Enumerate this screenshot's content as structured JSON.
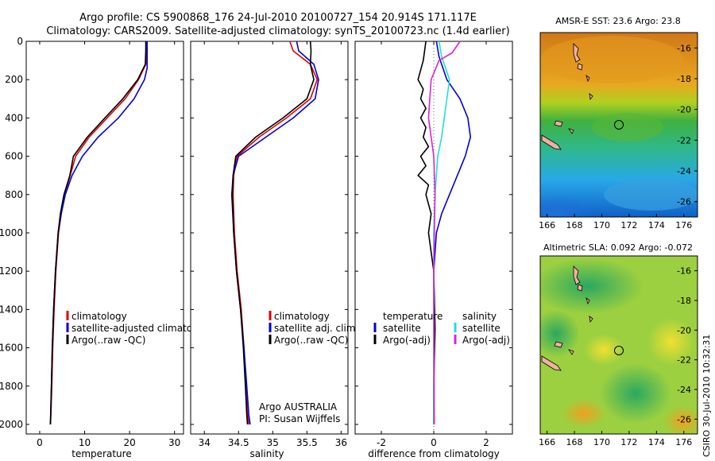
{
  "header": {
    "line1": "Argo profile: CS 5900868_176 24-Jul-2010 20100727_154 20.914S 171.117E",
    "line2": "Climatology: CARS2009. Satellite-adjusted climatology: synTS_20100723.nc (1.4d earlier)"
  },
  "credit": "CSIRO 30-Jul-2010 10:32:31",
  "colors": {
    "red": "#e00000",
    "blue": "#0000dd",
    "black": "#000000",
    "cyan": "#22dddd",
    "magenta": "#dd22dd"
  },
  "chart_data": [
    {
      "type": "line",
      "title": "",
      "xlabel": "temperature",
      "ylabel": "",
      "xlim": [
        -3,
        32
      ],
      "ylim": [
        2050,
        0
      ],
      "xticks": [
        0,
        10,
        20,
        30
      ],
      "yticks": [
        0,
        200,
        400,
        600,
        800,
        1000,
        1200,
        1400,
        1600,
        1800,
        2000
      ],
      "legend": [
        "climatology",
        "satellite-adjusted climatology",
        "Argo(..raw -QC)"
      ],
      "series": [
        {
          "name": "climatology",
          "color": "red",
          "x": [
            23.8,
            23.7,
            23.6,
            22.0,
            19.0,
            15.0,
            11.0,
            8.0,
            6.8,
            5.5,
            4.8,
            4.2,
            3.6,
            3.2,
            2.9,
            2.7,
            2.5,
            2.4
          ],
          "y": [
            0,
            50,
            120,
            200,
            300,
            400,
            500,
            600,
            700,
            800,
            900,
            1000,
            1200,
            1400,
            1600,
            1800,
            1950,
            2000
          ]
        },
        {
          "name": "satellite-adjusted climatology",
          "color": "blue",
          "x": [
            23.9,
            23.9,
            23.9,
            23.3,
            21.0,
            17.5,
            13.0,
            9.5,
            7.2,
            5.7,
            4.8,
            4.1,
            3.5,
            3.1,
            2.8,
            2.6,
            2.45,
            2.4
          ],
          "y": [
            0,
            50,
            140,
            200,
            300,
            400,
            500,
            600,
            700,
            800,
            900,
            1000,
            1200,
            1400,
            1600,
            1800,
            1950,
            2000
          ]
        },
        {
          "name": "Argo(..raw -QC)",
          "color": "black",
          "x": [
            23.6,
            23.6,
            23.5,
            21.8,
            18.5,
            14.5,
            10.6,
            7.5,
            6.7,
            5.4,
            4.6,
            4.1,
            3.5,
            3.1,
            2.8,
            2.6,
            2.45,
            2.35
          ],
          "y": [
            0,
            50,
            120,
            200,
            300,
            400,
            500,
            600,
            700,
            800,
            900,
            1000,
            1200,
            1400,
            1600,
            1800,
            1950,
            2000
          ]
        }
      ]
    },
    {
      "type": "line",
      "title": "",
      "xlabel": "salinity",
      "ylabel": "",
      "xlim": [
        33.8,
        36.1
      ],
      "ylim": [
        2050,
        0
      ],
      "xticks": [
        34,
        34.5,
        35,
        35.5,
        36
      ],
      "legend": [
        "climatology",
        "satellite adj. clim.",
        "Argo(..raw -QC)"
      ],
      "annotation": [
        "Argo AUSTRALIA",
        "PI: Susan Wijffels"
      ],
      "series": [
        {
          "name": "climatology",
          "color": "red",
          "x": [
            35.25,
            35.3,
            35.55,
            35.65,
            35.55,
            35.2,
            34.8,
            34.48,
            34.43,
            34.42,
            34.44,
            34.48,
            34.54,
            34.58,
            34.61,
            34.63,
            34.65
          ],
          "y": [
            0,
            50,
            120,
            200,
            300,
            400,
            500,
            600,
            700,
            800,
            1000,
            1200,
            1400,
            1600,
            1800,
            1950,
            2000
          ]
        },
        {
          "name": "satellite adj. clim.",
          "color": "blue",
          "x": [
            35.35,
            35.38,
            35.6,
            35.67,
            35.62,
            35.3,
            34.9,
            34.5,
            34.42,
            34.4,
            34.43,
            34.47,
            34.53,
            34.58,
            34.62,
            34.65,
            34.67
          ],
          "y": [
            0,
            50,
            120,
            200,
            300,
            400,
            500,
            600,
            700,
            800,
            1000,
            1200,
            1400,
            1600,
            1800,
            1950,
            2000
          ]
        },
        {
          "name": "Argo(..raw -QC)",
          "color": "black",
          "x": [
            35.55,
            35.56,
            35.55,
            35.6,
            35.5,
            35.15,
            34.75,
            34.46,
            34.42,
            34.41,
            34.43,
            34.47,
            34.53,
            34.57,
            34.6,
            34.62,
            34.63
          ],
          "y": [
            0,
            50,
            120,
            200,
            300,
            400,
            500,
            600,
            700,
            800,
            1000,
            1200,
            1400,
            1600,
            1800,
            1950,
            2000
          ]
        }
      ]
    },
    {
      "type": "line",
      "title": "",
      "xlabel": "difference from climatology",
      "ylabel": "",
      "xlim": [
        -3,
        3
      ],
      "ylim": [
        2050,
        0
      ],
      "xticks": [
        -2,
        0,
        2
      ],
      "legend_left": [
        "temperature",
        "satellite",
        "Argo(-adj)"
      ],
      "legend_right": [
        "salinity",
        "satellite",
        "Argo(-adj)"
      ],
      "series": [
        {
          "name": "temperature satellite",
          "color": "blue",
          "x": [
            0.1,
            0.2,
            0.5,
            1.0,
            1.3,
            1.4,
            1.2,
            0.9,
            0.6,
            0.3,
            0.1,
            0.0,
            0.0,
            0.0,
            0.0
          ],
          "y": [
            0,
            80,
            200,
            300,
            400,
            500,
            600,
            700,
            800,
            900,
            1000,
            1200,
            1400,
            1600,
            2000
          ]
        },
        {
          "name": "temperature Argo(-adj)",
          "color": "black",
          "x": [
            -0.3,
            -0.4,
            -0.6,
            -0.4,
            -0.5,
            -0.3,
            -0.5,
            -0.3,
            -0.4,
            -0.2,
            -0.5,
            -0.3,
            -0.6,
            -0.2,
            -0.3,
            -0.1,
            -0.2,
            0.0,
            0.05,
            0.0,
            0.0
          ],
          "y": [
            0,
            100,
            200,
            250,
            300,
            350,
            400,
            450,
            500,
            550,
            600,
            650,
            700,
            750,
            800,
            900,
            1000,
            1200,
            1500,
            1800,
            2000
          ]
        },
        {
          "name": "salinity satellite",
          "color": "cyan",
          "x": [
            0.2,
            0.3,
            0.6,
            0.5,
            0.4,
            0.3,
            0.15,
            0.05,
            0.0,
            0.0,
            0.0
          ],
          "y": [
            0,
            80,
            200,
            300,
            400,
            500,
            600,
            800,
            1000,
            1500,
            2000
          ]
        },
        {
          "name": "salinity Argo(-adj)",
          "color": "magenta",
          "x": [
            1.0,
            0.7,
            0.2,
            -0.1,
            -0.15,
            -0.2,
            -0.1,
            0.0,
            0.05,
            0.0,
            0.02
          ],
          "y": [
            0,
            60,
            100,
            200,
            300,
            400,
            500,
            600,
            800,
            1200,
            2000
          ]
        }
      ]
    },
    {
      "type": "heatmap",
      "title": "AMSR-E SST: 23.6 Argo: 23.8",
      "xlim": [
        165.5,
        177
      ],
      "ylim": [
        -27,
        -15
      ],
      "xticks": [
        166,
        168,
        170,
        172,
        174,
        176
      ],
      "yticks": [
        -16,
        -18,
        -20,
        -22,
        -24,
        -26
      ],
      "marker": [
        171.117,
        -20.914
      ]
    },
    {
      "type": "heatmap",
      "title": "Altimetric SLA: 0.092 Argo: -0.072",
      "xlim": [
        165.5,
        177
      ],
      "ylim": [
        -27,
        -15
      ],
      "xticks": [
        166,
        168,
        170,
        172,
        174,
        176
      ],
      "yticks": [
        -16,
        -18,
        -20,
        -22,
        -24,
        -26
      ],
      "marker": [
        171.117,
        -20.914
      ]
    }
  ]
}
